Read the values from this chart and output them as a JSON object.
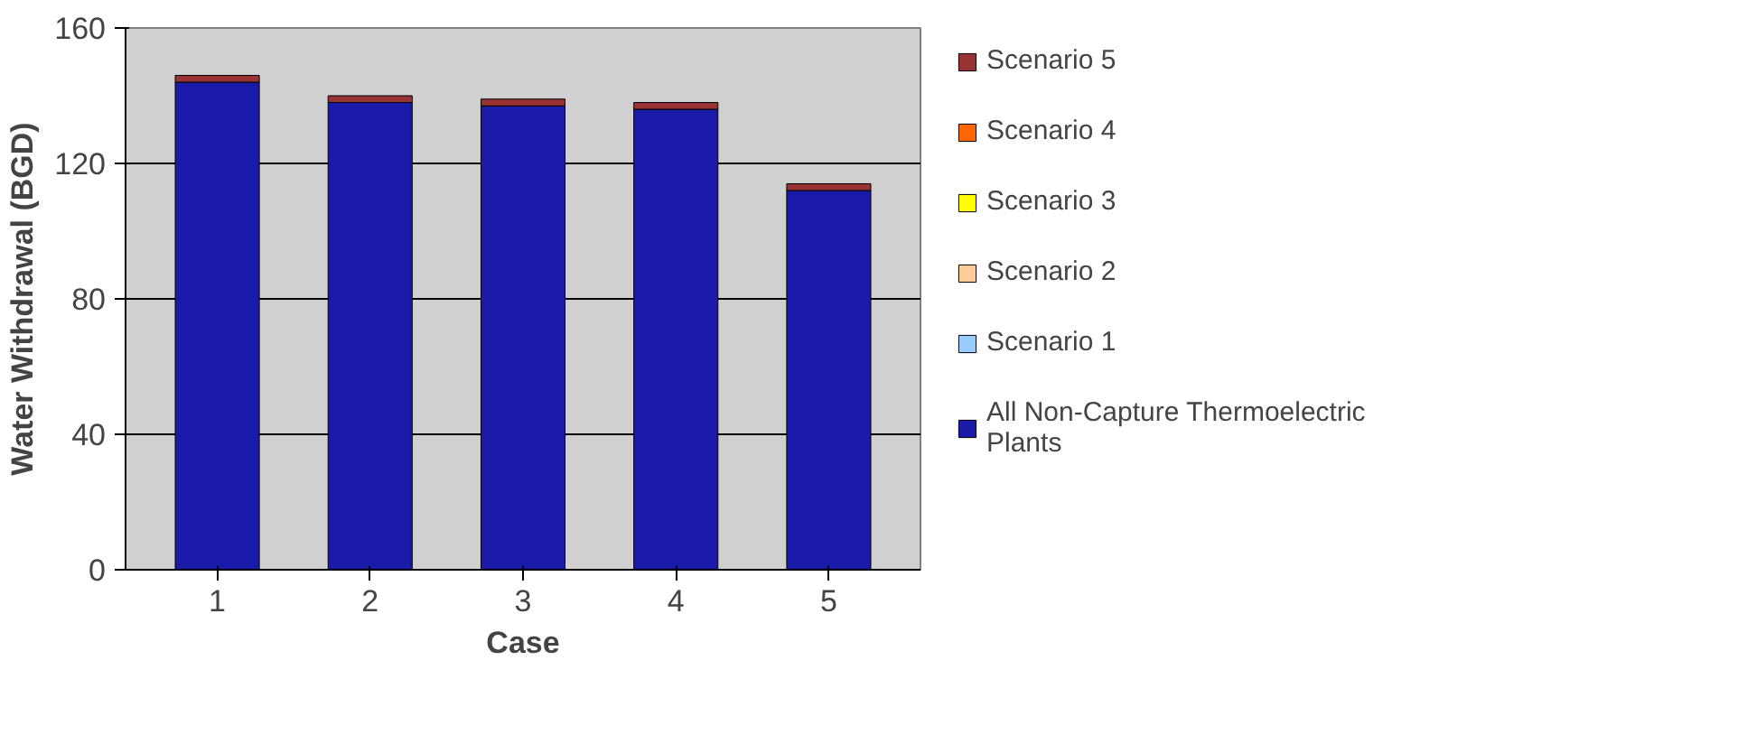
{
  "chart_data": {
    "type": "bar",
    "stacked": true,
    "xlabel": "Case",
    "ylabel": "Water Withdrawal (BGD)",
    "categories": [
      "1",
      "2",
      "3",
      "4",
      "5"
    ],
    "series": [
      {
        "name": "All Non-Capture Thermoelectric Plants",
        "color": "#1a1aa8",
        "values": [
          144,
          138,
          137,
          136,
          112
        ]
      },
      {
        "name": "Scenario 1",
        "color": "#99ccff",
        "values": [
          null,
          null,
          null,
          null,
          null
        ]
      },
      {
        "name": "Scenario 2",
        "color": "#ffcc99",
        "values": [
          null,
          null,
          null,
          null,
          null
        ]
      },
      {
        "name": "Scenario 3",
        "color": "#ffff00",
        "values": [
          null,
          null,
          null,
          null,
          null
        ]
      },
      {
        "name": "Scenario 4",
        "color": "#ff6600",
        "values": [
          null,
          null,
          null,
          null,
          null
        ]
      },
      {
        "name": "Scenario 5",
        "color": "#993333",
        "values": [
          2,
          2,
          2,
          2,
          2
        ]
      }
    ],
    "ylim": [
      0,
      160
    ],
    "yticks": [
      0,
      40,
      80,
      120,
      160
    ],
    "grid": "y",
    "legend": "right"
  }
}
